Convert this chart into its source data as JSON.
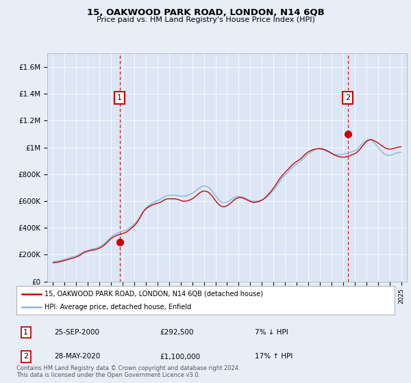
{
  "title": "15, OAKWOOD PARK ROAD, LONDON, N14 6QB",
  "subtitle": "Price paid vs. HM Land Registry's House Price Index (HPI)",
  "background_color": "#e8eef8",
  "plot_bg_color": "#dce6f5",
  "ylabel_ticks": [
    "£0",
    "£200K",
    "£400K",
    "£600K",
    "£800K",
    "£1M",
    "£1.2M",
    "£1.4M",
    "£1.6M"
  ],
  "ytick_values": [
    0,
    200000,
    400000,
    600000,
    800000,
    1000000,
    1200000,
    1400000,
    1600000
  ],
  "ylim": [
    0,
    1700000
  ],
  "xlim_start": 1994.5,
  "xlim_end": 2025.5,
  "hpi_color": "#8ab4d8",
  "price_color": "#cc0000",
  "marker1_year": 2000.73,
  "marker1_price": 292500,
  "marker2_year": 2020.41,
  "marker2_price": 1100000,
  "legend_label1": "15, OAKWOOD PARK ROAD, LONDON, N14 6QB (detached house)",
  "legend_label2": "HPI: Average price, detached house, Enfield",
  "note1_date": "25-SEP-2000",
  "note1_price": "£292,500",
  "note1_hpi": "7% ↓ HPI",
  "note2_date": "28-MAY-2020",
  "note2_price": "£1,100,000",
  "note2_hpi": "17% ↑ HPI",
  "footer": "Contains HM Land Registry data © Crown copyright and database right 2024.\nThis data is licensed under the Open Government Licence v3.0.",
  "hpi_years": [
    1995.0,
    1995.083,
    1995.167,
    1995.25,
    1995.333,
    1995.417,
    1995.5,
    1995.583,
    1995.667,
    1995.75,
    1995.833,
    1995.917,
    1996.0,
    1996.083,
    1996.167,
    1996.25,
    1996.333,
    1996.417,
    1996.5,
    1996.583,
    1996.667,
    1996.75,
    1996.833,
    1996.917,
    1997.0,
    1997.083,
    1997.167,
    1997.25,
    1997.333,
    1997.417,
    1997.5,
    1997.583,
    1997.667,
    1997.75,
    1997.833,
    1997.917,
    1998.0,
    1998.083,
    1998.167,
    1998.25,
    1998.333,
    1998.417,
    1998.5,
    1998.583,
    1998.667,
    1998.75,
    1998.833,
    1998.917,
    1999.0,
    1999.083,
    1999.167,
    1999.25,
    1999.333,
    1999.417,
    1999.5,
    1999.583,
    1999.667,
    1999.75,
    1999.833,
    1999.917,
    2000.0,
    2000.083,
    2000.167,
    2000.25,
    2000.333,
    2000.417,
    2000.5,
    2000.583,
    2000.667,
    2000.75,
    2000.833,
    2000.917,
    2001.0,
    2001.083,
    2001.167,
    2001.25,
    2001.333,
    2001.417,
    2001.5,
    2001.583,
    2001.667,
    2001.75,
    2001.833,
    2001.917,
    2002.0,
    2002.083,
    2002.167,
    2002.25,
    2002.333,
    2002.417,
    2002.5,
    2002.583,
    2002.667,
    2002.75,
    2002.833,
    2002.917,
    2003.0,
    2003.083,
    2003.167,
    2003.25,
    2003.333,
    2003.417,
    2003.5,
    2003.583,
    2003.667,
    2003.75,
    2003.833,
    2003.917,
    2004.0,
    2004.083,
    2004.167,
    2004.25,
    2004.333,
    2004.417,
    2004.5,
    2004.583,
    2004.667,
    2004.75,
    2004.833,
    2004.917,
    2005.0,
    2005.083,
    2005.167,
    2005.25,
    2005.333,
    2005.417,
    2005.5,
    2005.583,
    2005.667,
    2005.75,
    2005.833,
    2005.917,
    2006.0,
    2006.083,
    2006.167,
    2006.25,
    2006.333,
    2006.417,
    2006.5,
    2006.583,
    2006.667,
    2006.75,
    2006.833,
    2006.917,
    2007.0,
    2007.083,
    2007.167,
    2007.25,
    2007.333,
    2007.417,
    2007.5,
    2007.583,
    2007.667,
    2007.75,
    2007.833,
    2007.917,
    2008.0,
    2008.083,
    2008.167,
    2008.25,
    2008.333,
    2008.417,
    2008.5,
    2008.583,
    2008.667,
    2008.75,
    2008.833,
    2008.917,
    2009.0,
    2009.083,
    2009.167,
    2009.25,
    2009.333,
    2009.417,
    2009.5,
    2009.583,
    2009.667,
    2009.75,
    2009.833,
    2009.917,
    2010.0,
    2010.083,
    2010.167,
    2010.25,
    2010.333,
    2010.417,
    2010.5,
    2010.583,
    2010.667,
    2010.75,
    2010.833,
    2010.917,
    2011.0,
    2011.083,
    2011.167,
    2011.25,
    2011.333,
    2011.417,
    2011.5,
    2011.583,
    2011.667,
    2011.75,
    2011.833,
    2011.917,
    2012.0,
    2012.083,
    2012.167,
    2012.25,
    2012.333,
    2012.417,
    2012.5,
    2012.583,
    2012.667,
    2012.75,
    2012.833,
    2012.917,
    2013.0,
    2013.083,
    2013.167,
    2013.25,
    2013.333,
    2013.417,
    2013.5,
    2013.583,
    2013.667,
    2013.75,
    2013.833,
    2013.917,
    2014.0,
    2014.083,
    2014.167,
    2014.25,
    2014.333,
    2014.417,
    2014.5,
    2014.583,
    2014.667,
    2014.75,
    2014.833,
    2014.917,
    2015.0,
    2015.083,
    2015.167,
    2015.25,
    2015.333,
    2015.417,
    2015.5,
    2015.583,
    2015.667,
    2015.75,
    2015.833,
    2015.917,
    2016.0,
    2016.083,
    2016.167,
    2016.25,
    2016.333,
    2016.417,
    2016.5,
    2016.583,
    2016.667,
    2016.75,
    2016.833,
    2016.917,
    2017.0,
    2017.083,
    2017.167,
    2017.25,
    2017.333,
    2017.417,
    2017.5,
    2017.583,
    2017.667,
    2017.75,
    2017.833,
    2017.917,
    2018.0,
    2018.083,
    2018.167,
    2018.25,
    2018.333,
    2018.417,
    2018.5,
    2018.583,
    2018.667,
    2018.75,
    2018.833,
    2018.917,
    2019.0,
    2019.083,
    2019.167,
    2019.25,
    2019.333,
    2019.417,
    2019.5,
    2019.583,
    2019.667,
    2019.75,
    2019.833,
    2019.917,
    2020.0,
    2020.083,
    2020.167,
    2020.25,
    2020.333,
    2020.417,
    2020.5,
    2020.583,
    2020.667,
    2020.75,
    2020.833,
    2020.917,
    2021.0,
    2021.083,
    2021.167,
    2021.25,
    2021.333,
    2021.417,
    2021.5,
    2021.583,
    2021.667,
    2021.75,
    2021.833,
    2021.917,
    2022.0,
    2022.083,
    2022.167,
    2022.25,
    2022.333,
    2022.417,
    2022.5,
    2022.583,
    2022.667,
    2022.75,
    2022.833,
    2022.917,
    2023.0,
    2023.083,
    2023.167,
    2023.25,
    2023.333,
    2023.417,
    2023.5,
    2023.583,
    2023.667,
    2023.75,
    2023.833,
    2023.917,
    2024.0,
    2024.083,
    2024.167,
    2024.25,
    2024.333,
    2024.417,
    2024.5,
    2024.583,
    2024.667,
    2024.75,
    2024.833,
    2024.917,
    2025.0
  ],
  "hpi_values": [
    148000,
    149000,
    150000,
    151000,
    152000,
    153000,
    154000,
    156000,
    158000,
    160000,
    162000,
    164000,
    166000,
    168000,
    170000,
    172000,
    175000,
    177000,
    180000,
    182000,
    184000,
    186000,
    188000,
    190000,
    193000,
    196000,
    199000,
    203000,
    207000,
    211000,
    215000,
    219000,
    222000,
    225000,
    228000,
    230000,
    233000,
    235000,
    237000,
    239000,
    241000,
    242000,
    244000,
    246000,
    248000,
    250000,
    253000,
    256000,
    259000,
    263000,
    268000,
    273000,
    278000,
    284000,
    290000,
    297000,
    304000,
    311000,
    318000,
    325000,
    332000,
    338000,
    343000,
    348000,
    352000,
    356000,
    360000,
    363000,
    366000,
    369000,
    372000,
    374000,
    376000,
    378000,
    381000,
    384000,
    388000,
    392000,
    396000,
    401000,
    406000,
    411000,
    417000,
    423000,
    429000,
    436000,
    443000,
    452000,
    462000,
    473000,
    485000,
    498000,
    510000,
    521000,
    531000,
    540000,
    548000,
    555000,
    561000,
    567000,
    572000,
    577000,
    582000,
    587000,
    591000,
    595000,
    598000,
    601000,
    604000,
    607000,
    610000,
    614000,
    618000,
    622000,
    627000,
    631000,
    635000,
    638000,
    640000,
    641000,
    642000,
    643000,
    644000,
    644000,
    644000,
    644000,
    644000,
    643000,
    642000,
    641000,
    640000,
    638000,
    637000,
    636000,
    636000,
    636000,
    637000,
    638000,
    640000,
    643000,
    646000,
    649000,
    652000,
    655000,
    658000,
    662000,
    667000,
    672000,
    678000,
    684000,
    691000,
    697000,
    702000,
    706000,
    709000,
    711000,
    712000,
    712000,
    711000,
    709000,
    706000,
    701000,
    695000,
    688000,
    680000,
    671000,
    661000,
    651000,
    641000,
    631000,
    622000,
    614000,
    607000,
    601000,
    596000,
    592000,
    590000,
    589000,
    589000,
    591000,
    593000,
    596000,
    600000,
    605000,
    610000,
    615000,
    620000,
    624000,
    628000,
    631000,
    633000,
    634000,
    635000,
    634000,
    633000,
    631000,
    629000,
    626000,
    623000,
    620000,
    617000,
    614000,
    611000,
    608000,
    605000,
    603000,
    601000,
    600000,
    599000,
    599000,
    599000,
    600000,
    601000,
    602000,
    604000,
    606000,
    608000,
    611000,
    615000,
    619000,
    624000,
    630000,
    636000,
    643000,
    650000,
    657000,
    664000,
    672000,
    680000,
    689000,
    699000,
    709000,
    720000,
    731000,
    742000,
    752000,
    762000,
    771000,
    779000,
    787000,
    794000,
    801000,
    808000,
    815000,
    823000,
    831000,
    839000,
    847000,
    854000,
    861000,
    867000,
    873000,
    878000,
    883000,
    888000,
    893000,
    899000,
    905000,
    912000,
    919000,
    926000,
    933000,
    940000,
    946000,
    952000,
    957000,
    962000,
    967000,
    972000,
    976000,
    980000,
    984000,
    987000,
    990000,
    992000,
    993000,
    994000,
    994000,
    993000,
    992000,
    990000,
    987000,
    984000,
    981000,
    977000,
    973000,
    969000,
    964000,
    960000,
    956000,
    953000,
    950000,
    948000,
    947000,
    946000,
    946000,
    946000,
    947000,
    948000,
    949000,
    951000,
    952000,
    953000,
    954000,
    956000,
    958000,
    960000,
    963000,
    966000,
    968000,
    970000,
    972000,
    975000,
    979000,
    984000,
    990000,
    997000,
    1005000,
    1014000,
    1022000,
    1030000,
    1037000,
    1043000,
    1048000,
    1053000,
    1056000,
    1058000,
    1058000,
    1057000,
    1054000,
    1050000,
    1044000,
    1037000,
    1029000,
    1021000,
    1012000,
    1003000,
    994000,
    985000,
    977000,
    969000,
    962000,
    956000,
    951000,
    947000,
    944000,
    942000,
    941000,
    941000,
    942000,
    944000,
    946000,
    949000,
    952000,
    955000,
    958000,
    960000,
    962000,
    963000,
    964000,
    965000
  ],
  "price_years": [
    1995.0,
    1995.083,
    1995.167,
    1995.25,
    1995.333,
    1995.417,
    1995.5,
    1995.583,
    1995.667,
    1995.75,
    1995.833,
    1995.917,
    1996.0,
    1996.083,
    1996.167,
    1996.25,
    1996.333,
    1996.417,
    1996.5,
    1996.583,
    1996.667,
    1996.75,
    1996.833,
    1996.917,
    1997.0,
    1997.083,
    1997.167,
    1997.25,
    1997.333,
    1997.417,
    1997.5,
    1997.583,
    1997.667,
    1997.75,
    1997.833,
    1997.917,
    1998.0,
    1998.083,
    1998.167,
    1998.25,
    1998.333,
    1998.417,
    1998.5,
    1998.583,
    1998.667,
    1998.75,
    1998.833,
    1998.917,
    1999.0,
    1999.083,
    1999.167,
    1999.25,
    1999.333,
    1999.417,
    1999.5,
    1999.583,
    1999.667,
    1999.75,
    1999.833,
    1999.917,
    2000.0,
    2000.083,
    2000.167,
    2000.25,
    2000.333,
    2000.417,
    2000.5,
    2000.583,
    2000.667,
    2000.75,
    2000.833,
    2000.917,
    2001.0,
    2001.083,
    2001.167,
    2001.25,
    2001.333,
    2001.417,
    2001.5,
    2001.583,
    2001.667,
    2001.75,
    2001.833,
    2001.917,
    2002.0,
    2002.083,
    2002.167,
    2002.25,
    2002.333,
    2002.417,
    2002.5,
    2002.583,
    2002.667,
    2002.75,
    2002.833,
    2002.917,
    2003.0,
    2003.083,
    2003.167,
    2003.25,
    2003.333,
    2003.417,
    2003.5,
    2003.583,
    2003.667,
    2003.75,
    2003.833,
    2003.917,
    2004.0,
    2004.083,
    2004.167,
    2004.25,
    2004.333,
    2004.417,
    2004.5,
    2004.583,
    2004.667,
    2004.75,
    2004.833,
    2004.917,
    2005.0,
    2005.083,
    2005.167,
    2005.25,
    2005.333,
    2005.417,
    2005.5,
    2005.583,
    2005.667,
    2005.75,
    2005.833,
    2005.917,
    2006.0,
    2006.083,
    2006.167,
    2006.25,
    2006.333,
    2006.417,
    2006.5,
    2006.583,
    2006.667,
    2006.75,
    2006.833,
    2006.917,
    2007.0,
    2007.083,
    2007.167,
    2007.25,
    2007.333,
    2007.417,
    2007.5,
    2007.583,
    2007.667,
    2007.75,
    2007.833,
    2007.917,
    2008.0,
    2008.083,
    2008.167,
    2008.25,
    2008.333,
    2008.417,
    2008.5,
    2008.583,
    2008.667,
    2008.75,
    2008.833,
    2008.917,
    2009.0,
    2009.083,
    2009.167,
    2009.25,
    2009.333,
    2009.417,
    2009.5,
    2009.583,
    2009.667,
    2009.75,
    2009.833,
    2009.917,
    2010.0,
    2010.083,
    2010.167,
    2010.25,
    2010.333,
    2010.417,
    2010.5,
    2010.583,
    2010.667,
    2010.75,
    2010.833,
    2010.917,
    2011.0,
    2011.083,
    2011.167,
    2011.25,
    2011.333,
    2011.417,
    2011.5,
    2011.583,
    2011.667,
    2011.75,
    2011.833,
    2011.917,
    2012.0,
    2012.083,
    2012.167,
    2012.25,
    2012.333,
    2012.417,
    2012.5,
    2012.583,
    2012.667,
    2012.75,
    2012.833,
    2012.917,
    2013.0,
    2013.083,
    2013.167,
    2013.25,
    2013.333,
    2013.417,
    2013.5,
    2013.583,
    2013.667,
    2013.75,
    2013.833,
    2013.917,
    2014.0,
    2014.083,
    2014.167,
    2014.25,
    2014.333,
    2014.417,
    2014.5,
    2014.583,
    2014.667,
    2014.75,
    2014.833,
    2014.917,
    2015.0,
    2015.083,
    2015.167,
    2015.25,
    2015.333,
    2015.417,
    2015.5,
    2015.583,
    2015.667,
    2015.75,
    2015.833,
    2015.917,
    2016.0,
    2016.083,
    2016.167,
    2016.25,
    2016.333,
    2016.417,
    2016.5,
    2016.583,
    2016.667,
    2016.75,
    2016.833,
    2016.917,
    2017.0,
    2017.083,
    2017.167,
    2017.25,
    2017.333,
    2017.417,
    2017.5,
    2017.583,
    2017.667,
    2017.75,
    2017.833,
    2017.917,
    2018.0,
    2018.083,
    2018.167,
    2018.25,
    2018.333,
    2018.417,
    2018.5,
    2018.583,
    2018.667,
    2018.75,
    2018.833,
    2018.917,
    2019.0,
    2019.083,
    2019.167,
    2019.25,
    2019.333,
    2019.417,
    2019.5,
    2019.583,
    2019.667,
    2019.75,
    2019.833,
    2019.917,
    2020.0,
    2020.083,
    2020.167,
    2020.25,
    2020.333,
    2020.417,
    2020.5,
    2020.583,
    2020.667,
    2020.75,
    2020.833,
    2020.917,
    2021.0,
    2021.083,
    2021.167,
    2021.25,
    2021.333,
    2021.417,
    2021.5,
    2021.583,
    2021.667,
    2021.75,
    2021.833,
    2021.917,
    2022.0,
    2022.083,
    2022.167,
    2022.25,
    2022.333,
    2022.417,
    2022.5,
    2022.583,
    2022.667,
    2022.75,
    2022.833,
    2022.917,
    2023.0,
    2023.083,
    2023.167,
    2023.25,
    2023.333,
    2023.417,
    2023.5,
    2023.583,
    2023.667,
    2023.75,
    2023.833,
    2023.917,
    2024.0,
    2024.083,
    2024.167,
    2024.25,
    2024.333,
    2024.417,
    2024.5,
    2024.583,
    2024.667,
    2024.75,
    2024.833,
    2024.917,
    2025.0
  ],
  "price_values": [
    140000,
    141000,
    142000,
    143000,
    144000,
    145000,
    146000,
    147000,
    149000,
    151000,
    153000,
    155000,
    157000,
    159000,
    161000,
    163000,
    165000,
    167000,
    170000,
    172000,
    174000,
    176000,
    178000,
    180000,
    183000,
    186000,
    189000,
    193000,
    197000,
    202000,
    207000,
    212000,
    216000,
    219000,
    222000,
    224000,
    226000,
    228000,
    230000,
    232000,
    233000,
    234000,
    235000,
    237000,
    239000,
    241000,
    243000,
    246000,
    249000,
    253000,
    257000,
    261000,
    266000,
    272000,
    278000,
    285000,
    292000,
    299000,
    306000,
    313000,
    319000,
    325000,
    330000,
    334000,
    338000,
    341000,
    344000,
    347000,
    349000,
    351000,
    354000,
    356000,
    358000,
    360000,
    363000,
    366000,
    370000,
    375000,
    380000,
    386000,
    392000,
    398000,
    404000,
    410000,
    416000,
    424000,
    432000,
    442000,
    453000,
    465000,
    478000,
    492000,
    505000,
    516000,
    526000,
    534000,
    541000,
    547000,
    552000,
    557000,
    561000,
    565000,
    569000,
    572000,
    575000,
    577000,
    580000,
    582000,
    584000,
    586000,
    588000,
    591000,
    595000,
    599000,
    604000,
    608000,
    612000,
    614000,
    616000,
    617000,
    617000,
    617000,
    617000,
    617000,
    617000,
    617000,
    617000,
    616000,
    614000,
    612000,
    610000,
    607000,
    605000,
    602000,
    600000,
    599000,
    599000,
    599000,
    600000,
    602000,
    604000,
    607000,
    610000,
    614000,
    618000,
    622000,
    627000,
    633000,
    639000,
    645000,
    652000,
    658000,
    663000,
    667000,
    671000,
    673000,
    675000,
    675000,
    673000,
    671000,
    668000,
    663000,
    657000,
    650000,
    642000,
    633000,
    623000,
    613000,
    603000,
    594000,
    585000,
    578000,
    571000,
    566000,
    562000,
    559000,
    558000,
    558000,
    559000,
    562000,
    566000,
    570000,
    575000,
    581000,
    587000,
    594000,
    600000,
    607000,
    612000,
    617000,
    621000,
    624000,
    626000,
    627000,
    627000,
    626000,
    624000,
    621000,
    618000,
    614000,
    611000,
    607000,
    604000,
    600000,
    597000,
    594000,
    592000,
    591000,
    591000,
    591000,
    592000,
    593000,
    595000,
    597000,
    600000,
    603000,
    607000,
    612000,
    617000,
    623000,
    630000,
    637000,
    645000,
    653000,
    661000,
    669000,
    678000,
    687000,
    697000,
    707000,
    718000,
    729000,
    740000,
    751000,
    762000,
    772000,
    781000,
    790000,
    798000,
    806000,
    814000,
    821000,
    829000,
    836000,
    844000,
    852000,
    860000,
    867000,
    874000,
    880000,
    885000,
    891000,
    896000,
    900000,
    905000,
    910000,
    916000,
    922000,
    929000,
    936000,
    943000,
    950000,
    956000,
    962000,
    967000,
    971000,
    975000,
    978000,
    981000,
    984000,
    986000,
    988000,
    989000,
    990000,
    990000,
    990000,
    990000,
    989000,
    988000,
    986000,
    984000,
    981000,
    978000,
    975000,
    972000,
    968000,
    964000,
    960000,
    956000,
    952000,
    948000,
    944000,
    941000,
    938000,
    935000,
    933000,
    931000,
    929000,
    928000,
    928000,
    928000,
    928000,
    929000,
    930000,
    932000,
    934000,
    936000,
    939000,
    942000,
    945000,
    947000,
    950000,
    953000,
    957000,
    962000,
    968000,
    975000,
    983000,
    992000,
    1001000,
    1010000,
    1019000,
    1027000,
    1035000,
    1042000,
    1048000,
    1053000,
    1056000,
    1058000,
    1058000,
    1057000,
    1054000,
    1051000,
    1047000,
    1043000,
    1039000,
    1034000,
    1029000,
    1024000,
    1018000,
    1013000,
    1008000,
    1003000,
    999000,
    995000,
    992000,
    990000,
    989000,
    988000,
    988000,
    989000,
    990000,
    992000,
    994000,
    996000,
    998000,
    1000000,
    1002000,
    1003000,
    1004000,
    1005000
  ]
}
